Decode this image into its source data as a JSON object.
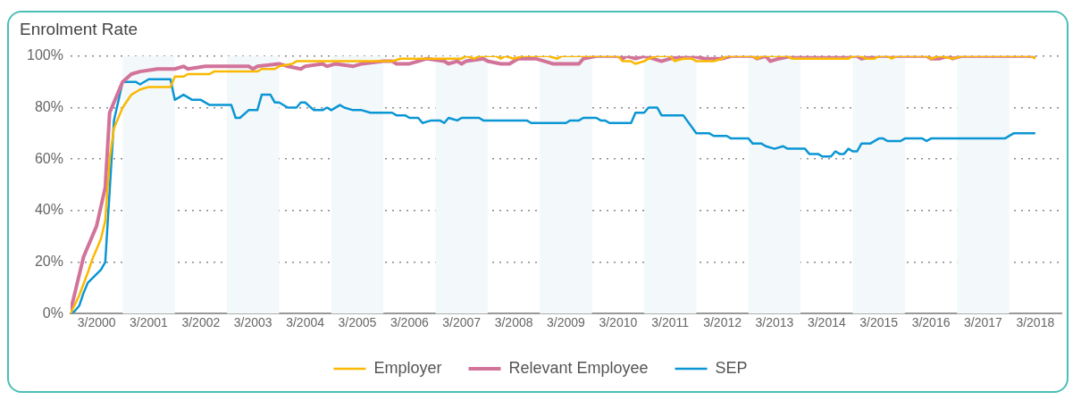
{
  "chart_data": {
    "type": "line",
    "title": "Enrolment Rate",
    "xlim": [
      "1999-09",
      "2018-09"
    ],
    "xticks": [
      {
        "value": "2000-03",
        "label": "3/2000"
      },
      {
        "value": "2001-03",
        "label": "3/2001"
      },
      {
        "value": "2002-03",
        "label": "3/2002"
      },
      {
        "value": "2003-03",
        "label": "3/2003"
      },
      {
        "value": "2004-03",
        "label": "3/2004"
      },
      {
        "value": "2005-03",
        "label": "3/2005"
      },
      {
        "value": "2006-03",
        "label": "3/2006"
      },
      {
        "value": "2007-03",
        "label": "3/2007"
      },
      {
        "value": "2008-03",
        "label": "3/2008"
      },
      {
        "value": "2009-03",
        "label": "3/2009"
      },
      {
        "value": "2010-03",
        "label": "3/2010"
      },
      {
        "value": "2011-03",
        "label": "3/2011"
      },
      {
        "value": "2012-03",
        "label": "3/2012"
      },
      {
        "value": "2013-03",
        "label": "3/2013"
      },
      {
        "value": "2014-03",
        "label": "3/2014"
      },
      {
        "value": "2015-03",
        "label": "3/2015"
      },
      {
        "value": "2016-03",
        "label": "3/2016"
      },
      {
        "value": "2017-03",
        "label": "3/2017"
      },
      {
        "value": "2018-03",
        "label": "3/2018"
      }
    ],
    "ylim": [
      0,
      100
    ],
    "yticks": [
      {
        "value": 0,
        "label": "0%"
      },
      {
        "value": 20,
        "label": "20%"
      },
      {
        "value": 40,
        "label": "40%"
      },
      {
        "value": 60,
        "label": "60%"
      },
      {
        "value": 80,
        "label": "80%"
      },
      {
        "value": 100,
        "label": "100%"
      }
    ],
    "grid": "y",
    "legend": "bottom",
    "bands": [
      {
        "axis": "x",
        "from": "2000-09",
        "to": "2001-09",
        "color": "#f3f8fa"
      },
      {
        "axis": "x",
        "from": "2002-09",
        "to": "2003-09",
        "color": "#f3f8fa"
      },
      {
        "axis": "x",
        "from": "2004-09",
        "to": "2005-09",
        "color": "#f3f8fa"
      },
      {
        "axis": "x",
        "from": "2006-09",
        "to": "2007-09",
        "color": "#f3f8fa"
      },
      {
        "axis": "x",
        "from": "2008-09",
        "to": "2009-09",
        "color": "#f3f8fa"
      },
      {
        "axis": "x",
        "from": "2010-09",
        "to": "2011-09",
        "color": "#f3f8fa"
      },
      {
        "axis": "x",
        "from": "2012-09",
        "to": "2013-09",
        "color": "#f3f8fa"
      },
      {
        "axis": "x",
        "from": "2014-09",
        "to": "2015-09",
        "color": "#f3f8fa"
      },
      {
        "axis": "x",
        "from": "2016-09",
        "to": "2017-09",
        "color": "#f3f8fa"
      }
    ],
    "series": [
      {
        "name": "Employer",
        "color": "#fbb800",
        "x": [
          "1999-09",
          "1999-11",
          "2000-01",
          "2000-02",
          "2000-04",
          "2000-05",
          "2000-06",
          "2000-07",
          "2000-09",
          "2000-11",
          "2001-01",
          "2001-03",
          "2001-08",
          "2001-09",
          "2001-11",
          "2001-12",
          "2002-05",
          "2002-06",
          "2003-04",
          "2003-05",
          "2003-08",
          "2003-09",
          "2003-12",
          "2004-01",
          "2005-11",
          "2006-01",
          "2007-03",
          "2007-04",
          "2007-06",
          "2007-07",
          "2007-11",
          "2007-12",
          "2008-01",
          "2008-03",
          "2008-05",
          "2008-11",
          "2009-01",
          "2009-02",
          "2010-03",
          "2010-04",
          "2010-06",
          "2010-07",
          "2010-09",
          "2010-10",
          "2010-12",
          "2011-03",
          "2011-04",
          "2011-06",
          "2011-08",
          "2011-09",
          "2012-01",
          "2012-03",
          "2012-04",
          "2012-10",
          "2012-11",
          "2012-12",
          "2013-06",
          "2013-07",
          "2014-08",
          "2014-09",
          "2014-11",
          "2014-12",
          "2015-02",
          "2015-03",
          "2015-05",
          "2015-06",
          "2015-07",
          "2016-02",
          "2016-03",
          "2016-05",
          "2016-08",
          "2016-10",
          "2018-02",
          "2018-03"
        ],
        "values": [
          0,
          7,
          16,
          21,
          29,
          36,
          60,
          72,
          80,
          85,
          87,
          88,
          88,
          92,
          92,
          93,
          93,
          94,
          94,
          95,
          95,
          96,
          97,
          98,
          98,
          99,
          99,
          100,
          99,
          100,
          100,
          99,
          100,
          99,
          100,
          100,
          99,
          100,
          100,
          98,
          98,
          97,
          98,
          99,
          100,
          100,
          98,
          99,
          99,
          98,
          98,
          99,
          100,
          100,
          99,
          100,
          100,
          99,
          99,
          100,
          100,
          99,
          99,
          100,
          100,
          99,
          100,
          100,
          99,
          100,
          99,
          100,
          100,
          99
        ]
      },
      {
        "name": "Relevant Employee",
        "color": "#d2739a",
        "x": [
          "1999-09",
          "1999-10",
          "1999-12",
          "2000-03",
          "2000-05",
          "2000-06",
          "2000-09",
          "2000-11",
          "2001-01",
          "2001-05",
          "2001-09",
          "2001-11",
          "2001-12",
          "2002-04",
          "2003-02",
          "2003-03",
          "2003-04",
          "2003-09",
          "2003-11",
          "2004-02",
          "2004-03",
          "2004-07",
          "2004-08",
          "2004-10",
          "2005-02",
          "2005-04",
          "2005-09",
          "2005-11",
          "2005-12",
          "2006-03",
          "2006-05",
          "2006-07",
          "2006-11",
          "2006-12",
          "2007-02",
          "2007-03",
          "2007-04",
          "2007-08",
          "2007-09",
          "2007-12",
          "2008-02",
          "2008-04",
          "2008-08",
          "2008-12",
          "2009-06",
          "2009-07",
          "2009-10",
          "2010-03",
          "2010-04",
          "2010-05",
          "2010-07",
          "2010-09",
          "2010-11",
          "2011-01",
          "2011-03",
          "2011-06",
          "2011-08",
          "2011-11",
          "2012-03",
          "2012-05",
          "2012-10",
          "2012-11",
          "2013-01",
          "2013-02",
          "2013-04",
          "2013-07",
          "2014-10",
          "2014-11",
          "2015-02",
          "2016-02",
          "2016-03",
          "2016-05",
          "2016-07",
          "2016-08",
          "2016-10",
          "2018-03"
        ],
        "values": [
          1,
          8,
          22,
          34,
          49,
          78,
          90,
          93,
          94,
          95,
          95,
          96,
          95,
          96,
          96,
          95,
          96,
          97,
          96,
          95,
          96,
          97,
          96,
          97,
          96,
          97,
          98,
          98,
          97,
          97,
          98,
          99,
          98,
          97,
          98,
          97,
          98,
          99,
          98,
          97,
          97,
          99,
          99,
          97,
          97,
          99,
          100,
          100,
          99,
          100,
          99,
          100,
          99,
          98,
          99,
          100,
          100,
          99,
          99,
          100,
          100,
          99,
          100,
          98,
          99,
          100,
          100,
          99,
          100,
          100,
          99,
          99,
          100,
          99,
          100,
          100
        ]
      },
      {
        "name": "SEP",
        "color": "#0a96d4",
        "x": [
          "1999-09",
          "1999-10",
          "1999-11",
          "1999-12",
          "2000-01",
          "2000-04",
          "2000-05",
          "2000-07",
          "2000-09",
          "2000-12",
          "2001-01",
          "2001-03",
          "2001-08",
          "2001-09",
          "2001-11",
          "2002-01",
          "2002-03",
          "2002-05",
          "2002-10",
          "2002-11",
          "2002-12",
          "2003-02",
          "2003-04",
          "2003-05",
          "2003-07",
          "2003-08",
          "2003-09",
          "2003-11",
          "2004-01",
          "2004-02",
          "2004-03",
          "2004-05",
          "2004-07",
          "2004-08",
          "2004-09",
          "2004-11",
          "2004-12",
          "2005-02",
          "2005-04",
          "2005-06",
          "2005-11",
          "2005-12",
          "2006-02",
          "2006-03",
          "2006-05",
          "2006-06",
          "2006-08",
          "2006-10",
          "2006-11",
          "2006-12",
          "2007-02",
          "2007-03",
          "2007-07",
          "2007-08",
          "2008-06",
          "2008-07",
          "2009-03",
          "2009-04",
          "2009-06",
          "2009-07",
          "2009-10",
          "2009-11",
          "2009-12",
          "2010-01",
          "2010-06",
          "2010-07",
          "2010-09",
          "2010-10",
          "2010-12",
          "2011-01",
          "2011-06",
          "2011-09",
          "2011-12",
          "2012-01",
          "2012-04",
          "2012-05",
          "2012-09",
          "2012-10",
          "2012-12",
          "2013-01",
          "2013-03",
          "2013-05",
          "2013-06",
          "2013-10",
          "2013-11",
          "2014-01",
          "2014-02",
          "2014-04",
          "2014-05",
          "2014-06",
          "2014-07",
          "2014-08",
          "2014-09",
          "2014-10",
          "2014-11",
          "2015-01",
          "2015-03",
          "2015-04",
          "2015-05",
          "2015-08",
          "2015-09",
          "2016-01",
          "2016-02",
          "2016-03",
          "2017-08",
          "2017-10",
          "2018-03"
        ],
        "values": [
          0,
          1,
          3,
          8,
          12,
          17,
          20,
          75,
          90,
          90,
          89,
          91,
          91,
          83,
          85,
          83,
          83,
          81,
          81,
          76,
          76,
          79,
          79,
          85,
          85,
          82,
          82,
          80,
          80,
          82,
          82,
          79,
          79,
          80,
          79,
          81,
          80,
          79,
          79,
          78,
          78,
          77,
          77,
          76,
          76,
          74,
          75,
          75,
          74,
          76,
          75,
          76,
          76,
          75,
          75,
          74,
          74,
          75,
          75,
          76,
          76,
          75,
          75,
          74,
          74,
          78,
          78,
          80,
          80,
          77,
          77,
          70,
          70,
          69,
          69,
          68,
          68,
          66,
          66,
          65,
          64,
          65,
          64,
          64,
          62,
          62,
          61,
          61,
          63,
          62,
          62,
          64,
          63,
          63,
          66,
          66,
          68,
          68,
          67,
          67,
          68,
          68,
          67,
          68,
          68,
          70,
          70
        ]
      }
    ]
  }
}
